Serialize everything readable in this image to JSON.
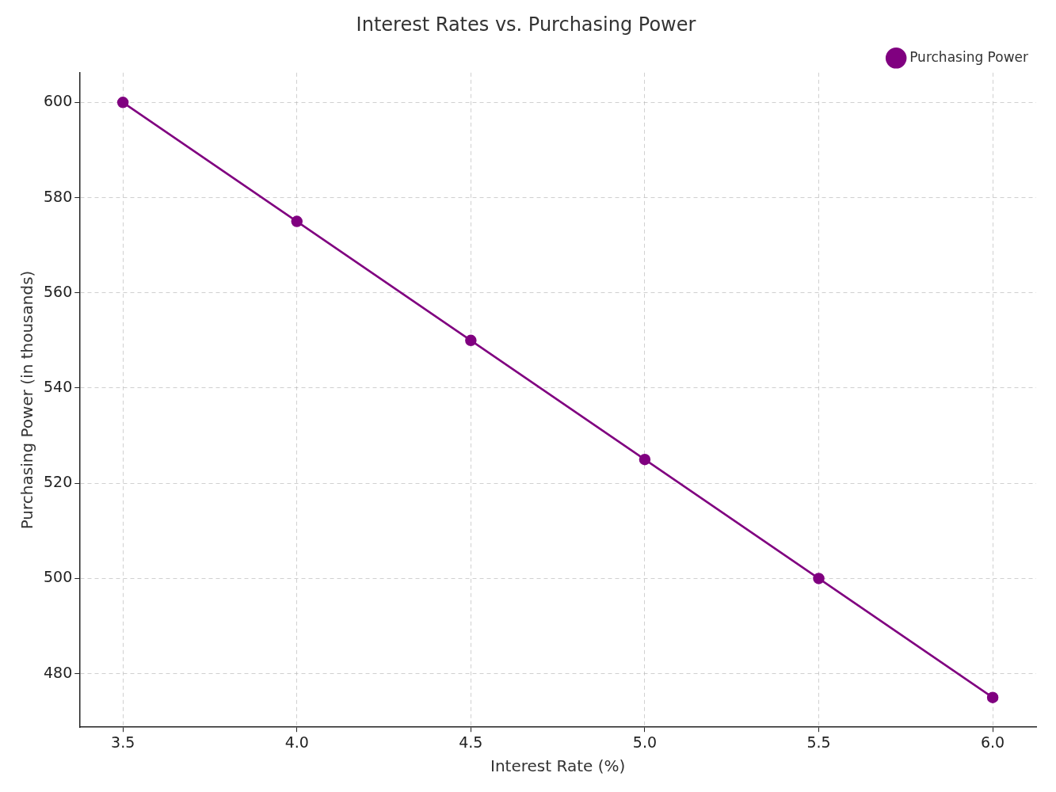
{
  "chart_data": {
    "type": "line",
    "title": "Interest Rates vs. Purchasing Power",
    "x_label": "Interest Rate (%)",
    "y_label": "Purchasing Power (in thousands)",
    "x": [
      3.5,
      4.0,
      4.5,
      5.0,
      5.5,
      6.0
    ],
    "series": [
      {
        "name": "Purchasing Power",
        "color": "#800080",
        "marker": "circle",
        "line_style": "solid",
        "values": [
          600,
          575,
          550,
          525,
          500,
          475
        ]
      }
    ],
    "xlim": [
      3.375,
      6.125
    ],
    "xticks": [
      3.5,
      {
        "value": 4,
        "label": "4.0"
      },
      4.5,
      {
        "value": 5,
        "label": "5.0"
      },
      5.5,
      {
        "value": 6,
        "label": "6.0"
      }
    ],
    "ylim": [
      468.75,
      606.25
    ],
    "yticks": [
      480,
      500,
      520,
      540,
      560,
      580,
      600
    ],
    "grid": true,
    "legend": "upper right"
  }
}
